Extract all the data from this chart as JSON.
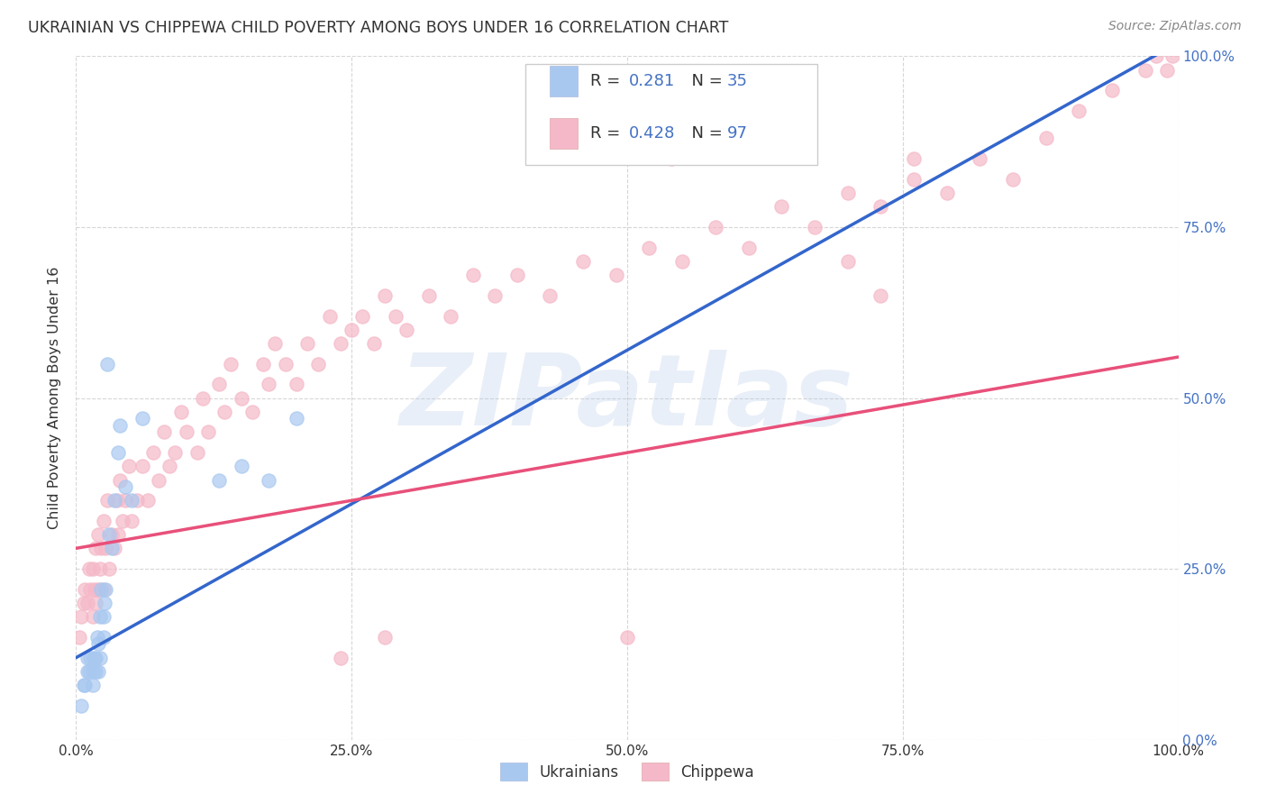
{
  "title": "UKRAINIAN VS CHIPPEWA CHILD POVERTY AMONG BOYS UNDER 16 CORRELATION CHART",
  "source": "Source: ZipAtlas.com",
  "ylabel": "Child Poverty Among Boys Under 16",
  "watermark": "ZIPatlas",
  "ukr_R": 0.281,
  "ukr_N": 35,
  "chp_R": 0.428,
  "chp_N": 97,
  "ukr_color": "#a8c8f0",
  "chp_color": "#f5b8c8",
  "ukr_line_color": "#3366cc",
  "chp_line_color": "#e8507a",
  "dashed_line_color": "#aaaacc",
  "background_color": "#ffffff",
  "grid_color": "#cccccc",
  "ukr_scatter_x": [
    0.005,
    0.007,
    0.008,
    0.01,
    0.01,
    0.012,
    0.013,
    0.015,
    0.015,
    0.016,
    0.018,
    0.018,
    0.019,
    0.02,
    0.02,
    0.022,
    0.022,
    0.023,
    0.025,
    0.025,
    0.026,
    0.027,
    0.028,
    0.03,
    0.032,
    0.035,
    0.038,
    0.04,
    0.045,
    0.05,
    0.06,
    0.13,
    0.15,
    0.175,
    0.2
  ],
  "ukr_scatter_y": [
    0.05,
    0.08,
    0.08,
    0.1,
    0.12,
    0.1,
    0.12,
    0.08,
    0.1,
    0.12,
    0.1,
    0.12,
    0.15,
    0.1,
    0.14,
    0.12,
    0.18,
    0.22,
    0.15,
    0.18,
    0.2,
    0.22,
    0.55,
    0.3,
    0.28,
    0.35,
    0.42,
    0.46,
    0.37,
    0.35,
    0.47,
    0.38,
    0.4,
    0.38,
    0.47
  ],
  "chp_scatter_x": [
    0.003,
    0.005,
    0.007,
    0.008,
    0.01,
    0.012,
    0.013,
    0.015,
    0.015,
    0.017,
    0.018,
    0.018,
    0.02,
    0.02,
    0.022,
    0.023,
    0.025,
    0.025,
    0.027,
    0.028,
    0.03,
    0.032,
    0.035,
    0.037,
    0.038,
    0.04,
    0.042,
    0.045,
    0.048,
    0.05,
    0.055,
    0.06,
    0.065,
    0.07,
    0.075,
    0.08,
    0.085,
    0.09,
    0.095,
    0.1,
    0.11,
    0.115,
    0.12,
    0.13,
    0.135,
    0.14,
    0.15,
    0.16,
    0.17,
    0.175,
    0.18,
    0.19,
    0.2,
    0.21,
    0.22,
    0.23,
    0.24,
    0.25,
    0.26,
    0.27,
    0.28,
    0.29,
    0.3,
    0.32,
    0.34,
    0.36,
    0.38,
    0.4,
    0.43,
    0.46,
    0.49,
    0.52,
    0.55,
    0.58,
    0.61,
    0.64,
    0.67,
    0.7,
    0.73,
    0.76,
    0.79,
    0.82,
    0.85,
    0.88,
    0.91,
    0.94,
    0.97,
    0.98,
    0.99,
    0.995,
    0.24,
    0.28,
    0.5,
    0.54,
    0.7,
    0.73,
    0.76
  ],
  "chp_scatter_y": [
    0.15,
    0.18,
    0.2,
    0.22,
    0.2,
    0.25,
    0.22,
    0.18,
    0.25,
    0.22,
    0.2,
    0.28,
    0.22,
    0.3,
    0.25,
    0.28,
    0.22,
    0.32,
    0.28,
    0.35,
    0.25,
    0.3,
    0.28,
    0.35,
    0.3,
    0.38,
    0.32,
    0.35,
    0.4,
    0.32,
    0.35,
    0.4,
    0.35,
    0.42,
    0.38,
    0.45,
    0.4,
    0.42,
    0.48,
    0.45,
    0.42,
    0.5,
    0.45,
    0.52,
    0.48,
    0.55,
    0.5,
    0.48,
    0.55,
    0.52,
    0.58,
    0.55,
    0.52,
    0.58,
    0.55,
    0.62,
    0.58,
    0.6,
    0.62,
    0.58,
    0.65,
    0.62,
    0.6,
    0.65,
    0.62,
    0.68,
    0.65,
    0.68,
    0.65,
    0.7,
    0.68,
    0.72,
    0.7,
    0.75,
    0.72,
    0.78,
    0.75,
    0.8,
    0.78,
    0.82,
    0.8,
    0.85,
    0.82,
    0.88,
    0.92,
    0.95,
    0.98,
    1.0,
    0.98,
    1.0,
    0.12,
    0.15,
    0.15,
    0.85,
    0.7,
    0.65,
    0.85
  ],
  "xlim": [
    0.0,
    1.0
  ],
  "ylim": [
    0.0,
    1.0
  ],
  "xticks": [
    0.0,
    0.25,
    0.5,
    0.75,
    1.0
  ],
  "yticks": [
    0.0,
    0.25,
    0.5,
    0.75,
    1.0
  ],
  "xticklabels": [
    "0.0%",
    "25.0%",
    "50.0%",
    "75.0%",
    "100.0%"
  ],
  "yticklabels_right": [
    "0.0%",
    "25.0%",
    "50.0%",
    "75.0%",
    "100.0%"
  ],
  "title_color": "#333333",
  "axis_label_color": "#333333",
  "tick_color_x": "#333333",
  "tick_color_y": "#4472c4",
  "r_n_color": "#4472c4",
  "ukr_line_intercept": 0.12,
  "ukr_line_slope": 0.9,
  "chp_line_intercept": 0.28,
  "chp_line_slope": 0.28
}
